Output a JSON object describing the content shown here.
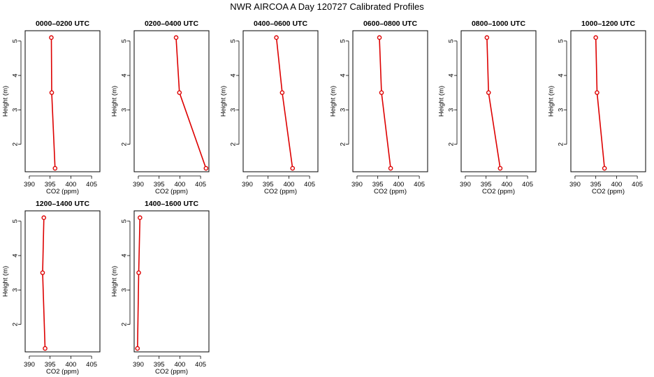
{
  "title": "NWR AIRCOA A  Day 120727  Calibrated Profiles",
  "colors": {
    "series": "#dd0000",
    "axis": "#000000"
  },
  "chart_data": [
    {
      "type": "line",
      "title": "0000–0200 UTC",
      "xlabel": "CO2 (ppm)",
      "ylabel": "Height (m)",
      "xlim": [
        389,
        407
      ],
      "ylim": [
        1.2,
        5.3
      ],
      "xticks": [
        390,
        395,
        400,
        405
      ],
      "yticks": [
        2,
        3,
        4,
        5
      ],
      "x": [
        395.3,
        395.4,
        396.2
      ],
      "y": [
        5.1,
        3.5,
        1.3
      ]
    },
    {
      "type": "line",
      "title": "0200–0400 UTC",
      "xlabel": "CO2 (ppm)",
      "ylabel": "Height (m)",
      "xlim": [
        389,
        407
      ],
      "ylim": [
        1.2,
        5.3
      ],
      "xticks": [
        390,
        395,
        400,
        405
      ],
      "yticks": [
        2,
        3,
        4,
        5
      ],
      "x": [
        399.1,
        399.9,
        406.3
      ],
      "y": [
        5.1,
        3.5,
        1.3
      ]
    },
    {
      "type": "line",
      "title": "0400–0600 UTC",
      "xlabel": "CO2 (ppm)",
      "ylabel": "Height (m)",
      "xlim": [
        389,
        407
      ],
      "ylim": [
        1.2,
        5.3
      ],
      "xticks": [
        390,
        395,
        400,
        405
      ],
      "yticks": [
        2,
        3,
        4,
        5
      ],
      "x": [
        397.0,
        398.4,
        400.9
      ],
      "y": [
        5.1,
        3.5,
        1.3
      ]
    },
    {
      "type": "line",
      "title": "0600–0800 UTC",
      "xlabel": "CO2 (ppm)",
      "ylabel": "Height (m)",
      "xlim": [
        389,
        407
      ],
      "ylim": [
        1.2,
        5.3
      ],
      "xticks": [
        390,
        395,
        400,
        405
      ],
      "yticks": [
        2,
        3,
        4,
        5
      ],
      "x": [
        395.4,
        395.9,
        398.1
      ],
      "y": [
        5.1,
        3.5,
        1.3
      ]
    },
    {
      "type": "line",
      "title": "0800–1000 UTC",
      "xlabel": "CO2 (ppm)",
      "ylabel": "Height (m)",
      "xlim": [
        389,
        407
      ],
      "ylim": [
        1.2,
        5.3
      ],
      "xticks": [
        390,
        395,
        400,
        405
      ],
      "yticks": [
        2,
        3,
        4,
        5
      ],
      "x": [
        395.2,
        395.6,
        398.4
      ],
      "y": [
        5.1,
        3.5,
        1.3
      ]
    },
    {
      "type": "line",
      "title": "1000–1200 UTC",
      "xlabel": "CO2 (ppm)",
      "ylabel": "Height (m)",
      "xlim": [
        389,
        407
      ],
      "ylim": [
        1.2,
        5.3
      ],
      "xticks": [
        390,
        395,
        400,
        405
      ],
      "yticks": [
        2,
        3,
        4,
        5
      ],
      "x": [
        395.0,
        395.3,
        397.1
      ],
      "y": [
        5.1,
        3.5,
        1.3
      ]
    },
    {
      "type": "line",
      "title": "1200–1400 UTC",
      "xlabel": "CO2 (ppm)",
      "ylabel": "Height (m)",
      "xlim": [
        389,
        407
      ],
      "ylim": [
        1.2,
        5.3
      ],
      "xticks": [
        390,
        395,
        400,
        405
      ],
      "yticks": [
        2,
        3,
        4,
        5
      ],
      "x": [
        393.5,
        393.2,
        393.8
      ],
      "y": [
        5.1,
        3.5,
        1.3
      ]
    },
    {
      "type": "line",
      "title": "1400–1600 UTC",
      "xlabel": "CO2 (ppm)",
      "ylabel": "Height (m)",
      "xlim": [
        389,
        407
      ],
      "ylim": [
        1.2,
        5.3
      ],
      "xticks": [
        390,
        395,
        400,
        405
      ],
      "yticks": [
        2,
        3,
        4,
        5
      ],
      "x": [
        390.4,
        390.1,
        389.8
      ],
      "y": [
        5.1,
        3.5,
        1.3
      ]
    }
  ]
}
